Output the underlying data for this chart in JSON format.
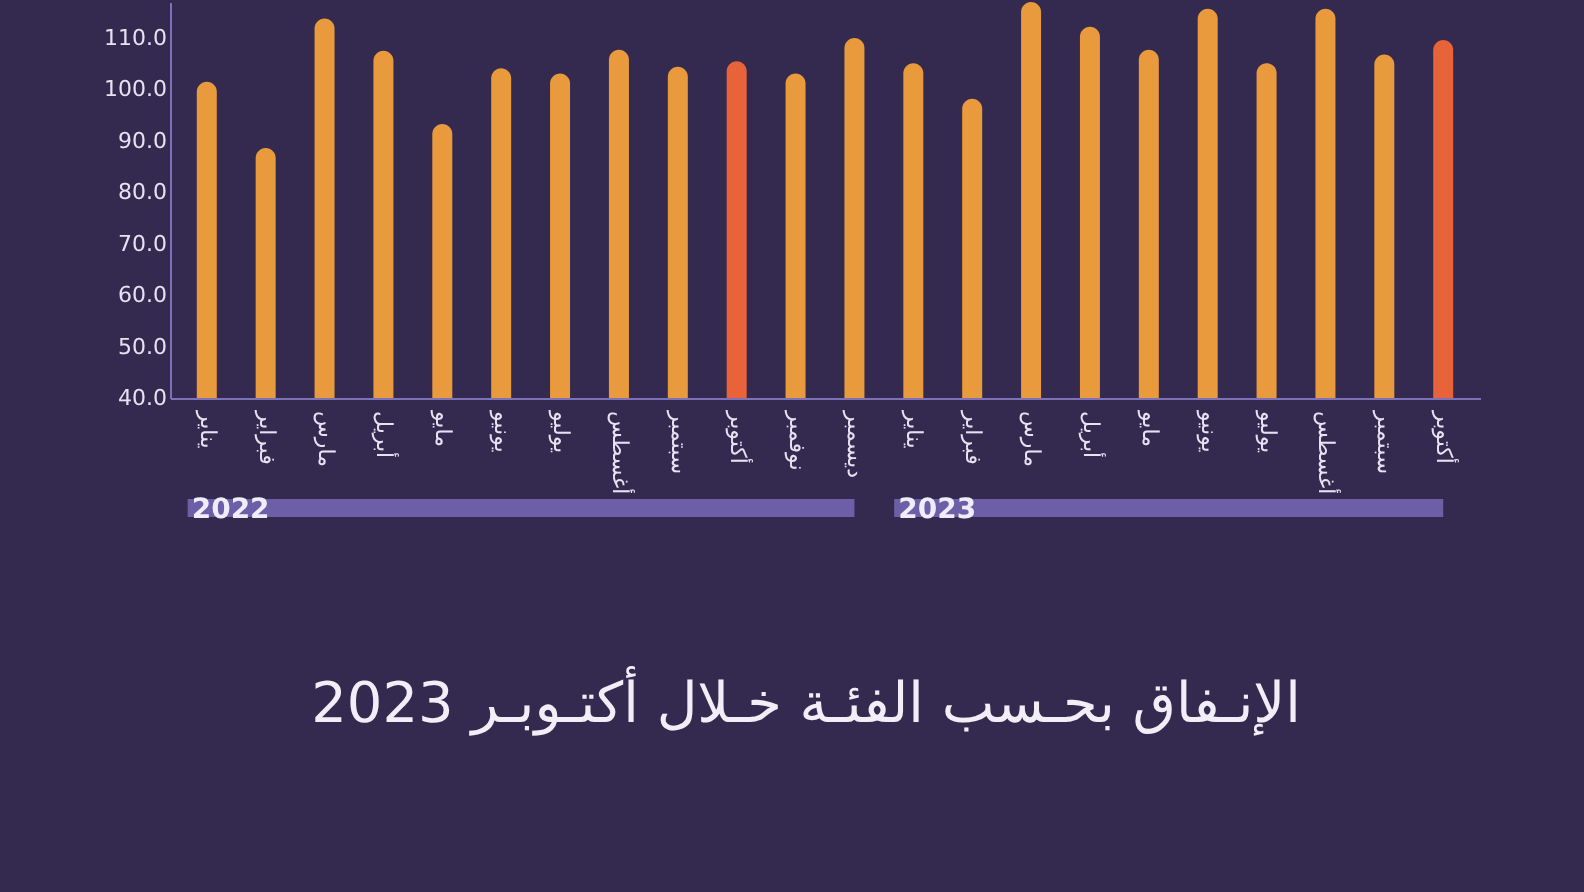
{
  "chart_data": {
    "type": "bar",
    "categories": [
      "يناير",
      "فبراير",
      "مارس",
      "أبريل",
      "مايو",
      "يونيو",
      "يوليو",
      "أغسطس",
      "سبتمبر",
      "أكتوبر",
      "نوفمبر",
      "ديسمبر",
      "يناير",
      "فبراير",
      "مارس",
      "أبريل",
      "مايو",
      "يونيو",
      "يوليو",
      "أغسطس",
      "سبتمبر",
      "أكتوبر"
    ],
    "values": [
      101.5,
      88.6,
      113.8,
      107.5,
      93.3,
      104.1,
      103.1,
      107.7,
      104.4,
      105.5,
      103.1,
      110.0,
      105.1,
      98.2,
      117,
      112.2,
      107.7,
      115.7,
      105.1,
      115.7,
      106.8,
      109.6
    ],
    "colors": [
      "#e89a3c",
      "#e89a3c",
      "#e89a3c",
      "#e89a3c",
      "#e89a3c",
      "#e89a3c",
      "#e89a3c",
      "#e89a3c",
      "#e89a3c",
      "#e8623a",
      "#e89a3c",
      "#e89a3c",
      "#e89a3c",
      "#e89a3c",
      "#e89a3c",
      "#e89a3c",
      "#e89a3c",
      "#e89a3c",
      "#e89a3c",
      "#e89a3c",
      "#e89a3c",
      "#e8623a"
    ],
    "ylim": [
      40,
      117
    ],
    "yticks": [
      {
        "value": 40,
        "label": "40.0"
      },
      {
        "value": 50,
        "label": "50.0"
      },
      {
        "value": 60,
        "label": "60.0"
      },
      {
        "value": 70,
        "label": "70.0"
      },
      {
        "value": 80,
        "label": "80.0"
      },
      {
        "value": 90,
        "label": "90.0"
      },
      {
        "value": 100,
        "label": "100.0"
      },
      {
        "value": 110,
        "label": "110.0"
      }
    ],
    "grid": false,
    "annotations": [
      "2022",
      "2023",
      "الإنـفاق بحـسب الفئـة خـلال أكتـوبـر 2023"
    ]
  }
}
